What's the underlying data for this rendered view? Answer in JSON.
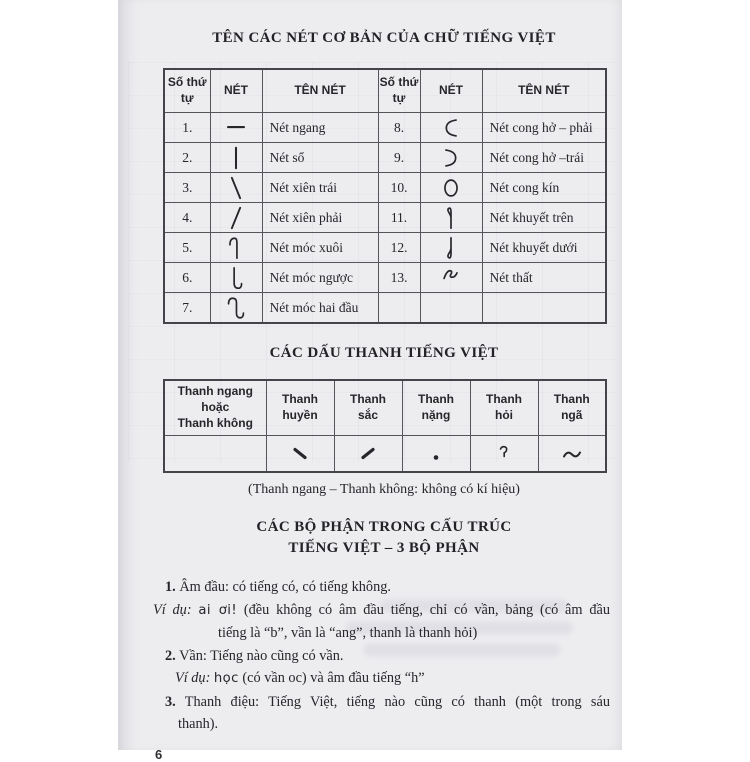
{
  "doc": {
    "page_number": "6",
    "colors": {
      "page_bg": "#edecef",
      "text": "#26262b",
      "border": "#55555c"
    },
    "s1": {
      "title": "TÊN CÁC NÉT CƠ BẢN CỦA CHỮ TIẾNG VIỆT",
      "headers": {
        "num": "Số thứ tự",
        "stroke": "NÉT",
        "name": "TÊN NÉT"
      },
      "left": [
        {
          "num": "1.",
          "key": "ngang",
          "name": "Nét ngang"
        },
        {
          "num": "2.",
          "key": "so",
          "name": "Nét sổ"
        },
        {
          "num": "3.",
          "key": "xien-trai",
          "name": "Nét xiên trái"
        },
        {
          "num": "4.",
          "key": "xien-phai",
          "name": "Nét xiên phải"
        },
        {
          "num": "5.",
          "key": "moc-xuoi",
          "name": "Nét móc xuôi"
        },
        {
          "num": "6.",
          "key": "moc-nguoc",
          "name": "Nét móc ngược"
        },
        {
          "num": "7.",
          "key": "moc-hai-dau",
          "name": "Nét móc hai đầu"
        }
      ],
      "right": [
        {
          "num": "8.",
          "key": "cong-ho-phai",
          "name": "Nét cong hở – phải"
        },
        {
          "num": "9.",
          "key": "cong-ho-trai",
          "name": "Nét cong hở –trái"
        },
        {
          "num": "10.",
          "key": "cong-kin",
          "name": "Nét cong kín"
        },
        {
          "num": "11.",
          "key": "khuyet-tren",
          "name": "Nét khuyết trên"
        },
        {
          "num": "12.",
          "key": "khuyet-duoi",
          "name": "Nét khuyết dưới"
        },
        {
          "num": "13.",
          "key": "that",
          "name": "Nét thất"
        },
        {
          "num": "",
          "key": "none",
          "name": ""
        }
      ]
    },
    "s2": {
      "title": "CÁC DẤU THANH TIẾNG VIỆT",
      "cols": [
        {
          "lines": [
            "Thanh ngang",
            "hoặc",
            "Thanh không"
          ],
          "mark": "none"
        },
        {
          "lines": [
            "Thanh",
            "huyền"
          ],
          "mark": "grave"
        },
        {
          "lines": [
            "Thanh",
            "sắc"
          ],
          "mark": "acute"
        },
        {
          "lines": [
            "Thanh",
            "nặng"
          ],
          "mark": "dot"
        },
        {
          "lines": [
            "Thanh",
            "hỏi"
          ],
          "mark": "hook"
        },
        {
          "lines": [
            "Thanh",
            "ngã"
          ],
          "mark": "tilde"
        }
      ],
      "caption": "(Thanh ngang – Thanh không: không có kí hiệu)"
    },
    "s3": {
      "title_line1": "CÁC BỘ PHẬN TRONG CẤU TRÚC",
      "title_line2": "TIẾNG VIỆT – 3 BỘ PHẬN",
      "i1": {
        "num": "1.",
        "text": "Âm đầu: có tiếng có, có tiếng không."
      },
      "ex1": {
        "label": "Ví dụ:",
        "word": "ai ơi!",
        "rest": "(đều không có âm đầu tiếng, chỉ có vần, bảng (có âm đầu",
        "cont": "tiếng là “b”, vần là “ang”, thanh là thanh hỏi)"
      },
      "i2": {
        "num": "2.",
        "text": "Vần: Tiếng nào cũng có vần."
      },
      "ex2": {
        "label": "Ví dụ:",
        "word": "học",
        "rest": "(có vần oc) và âm đầu tiếng “h”"
      },
      "i3": {
        "num": "3.",
        "text": "Thanh điệu: Tiếng Việt, tiếng nào cũng có thanh (một trong sáu",
        "cont": "thanh)."
      }
    }
  }
}
